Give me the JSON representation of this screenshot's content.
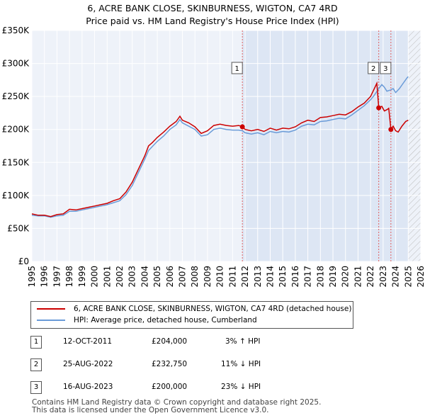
{
  "title_line1": "6, ACRE BANK CLOSE, SKINBURNESS, WIGTON, CA7 4RD",
  "title_line2": "Price paid vs. HM Land Registry's House Price Index (HPI)",
  "chart_data": {
    "type": "line",
    "y_ticks": [
      {
        "value": 0,
        "label": "£0"
      },
      {
        "value": 50000,
        "label": "£50K"
      },
      {
        "value": 100000,
        "label": "£100K"
      },
      {
        "value": 150000,
        "label": "£150K"
      },
      {
        "value": 200000,
        "label": "£200K"
      },
      {
        "value": 250000,
        "label": "£250K"
      },
      {
        "value": 300000,
        "label": "£300K"
      },
      {
        "value": 350000,
        "label": "£350K"
      }
    ],
    "x_ticks": [
      "1995",
      "1996",
      "1997",
      "1998",
      "1999",
      "2000",
      "2001",
      "2002",
      "2003",
      "2004",
      "2005",
      "2006",
      "2007",
      "2008",
      "2009",
      "2010",
      "2011",
      "2012",
      "2013",
      "2014",
      "2015",
      "2016",
      "2017",
      "2018",
      "2019",
      "2020",
      "2021",
      "2022",
      "2023",
      "2024",
      "2025",
      "2026"
    ],
    "xlim": [
      1995,
      2026
    ],
    "ylim": [
      0,
      350000
    ],
    "grid": true,
    "forecast_start": 2025.0,
    "series": [
      {
        "name": "6, ACRE BANK CLOSE, SKINBURNESS, WIGTON, CA7 4RD (detached house)",
        "color": "#cc0000",
        "points": [
          [
            1995.0,
            72000
          ],
          [
            1995.5,
            70000
          ],
          [
            1996.0,
            70000
          ],
          [
            1996.5,
            68000
          ],
          [
            1997.0,
            71000
          ],
          [
            1997.5,
            72000
          ],
          [
            1998.0,
            79000
          ],
          [
            1998.5,
            78000
          ],
          [
            1999.0,
            80000
          ],
          [
            1999.5,
            82000
          ],
          [
            2000.0,
            84000
          ],
          [
            2000.5,
            86000
          ],
          [
            2001.0,
            88000
          ],
          [
            2001.5,
            92000
          ],
          [
            2002.0,
            95000
          ],
          [
            2002.5,
            105000
          ],
          [
            2003.0,
            120000
          ],
          [
            2003.5,
            140000
          ],
          [
            2004.0,
            160000
          ],
          [
            2004.3,
            175000
          ],
          [
            2004.6,
            180000
          ],
          [
            2005.0,
            188000
          ],
          [
            2005.5,
            196000
          ],
          [
            2006.0,
            205000
          ],
          [
            2006.5,
            212000
          ],
          [
            2006.8,
            220000
          ],
          [
            2007.0,
            214000
          ],
          [
            2007.5,
            210000
          ],
          [
            2008.0,
            204000
          ],
          [
            2008.5,
            194000
          ],
          [
            2009.0,
            198000
          ],
          [
            2009.5,
            206000
          ],
          [
            2010.0,
            208000
          ],
          [
            2010.5,
            206000
          ],
          [
            2011.0,
            205000
          ],
          [
            2011.5,
            206000
          ],
          [
            2011.78,
            204000
          ],
          [
            2012.0,
            200000
          ],
          [
            2012.5,
            198000
          ],
          [
            2013.0,
            200000
          ],
          [
            2013.5,
            197000
          ],
          [
            2014.0,
            202000
          ],
          [
            2014.5,
            199000
          ],
          [
            2015.0,
            202000
          ],
          [
            2015.5,
            201000
          ],
          [
            2016.0,
            204000
          ],
          [
            2016.5,
            210000
          ],
          [
            2017.0,
            214000
          ],
          [
            2017.5,
            212000
          ],
          [
            2018.0,
            218000
          ],
          [
            2018.5,
            219000
          ],
          [
            2019.0,
            221000
          ],
          [
            2019.5,
            223000
          ],
          [
            2020.0,
            222000
          ],
          [
            2020.5,
            227000
          ],
          [
            2021.0,
            234000
          ],
          [
            2021.5,
            240000
          ],
          [
            2022.0,
            250000
          ],
          [
            2022.3,
            262000
          ],
          [
            2022.5,
            270000
          ],
          [
            2022.65,
            232750
          ],
          [
            2022.9,
            235000
          ],
          [
            2023.1,
            228000
          ],
          [
            2023.3,
            230000
          ],
          [
            2023.45,
            232000
          ],
          [
            2023.62,
            200000
          ],
          [
            2023.8,
            205000
          ],
          [
            2024.0,
            198000
          ],
          [
            2024.2,
            196000
          ],
          [
            2024.5,
            205000
          ],
          [
            2024.8,
            212000
          ],
          [
            2025.0,
            214000
          ]
        ]
      },
      {
        "name": "HPI: Average price, detached house, Cumberland",
        "color": "#6a9bd8",
        "points": [
          [
            1995.0,
            70000
          ],
          [
            1995.5,
            69000
          ],
          [
            1996.0,
            69000
          ],
          [
            1996.5,
            67000
          ],
          [
            1997.0,
            69000
          ],
          [
            1997.5,
            70000
          ],
          [
            1998.0,
            76000
          ],
          [
            1998.5,
            76000
          ],
          [
            1999.0,
            78000
          ],
          [
            1999.5,
            80000
          ],
          [
            2000.0,
            82000
          ],
          [
            2000.5,
            84000
          ],
          [
            2001.0,
            86000
          ],
          [
            2001.5,
            89000
          ],
          [
            2002.0,
            92000
          ],
          [
            2002.5,
            101000
          ],
          [
            2003.0,
            115000
          ],
          [
            2003.5,
            135000
          ],
          [
            2004.0,
            155000
          ],
          [
            2004.3,
            168000
          ],
          [
            2004.6,
            174000
          ],
          [
            2005.0,
            182000
          ],
          [
            2005.5,
            190000
          ],
          [
            2006.0,
            200000
          ],
          [
            2006.5,
            207000
          ],
          [
            2006.8,
            215000
          ],
          [
            2007.0,
            210000
          ],
          [
            2007.5,
            205000
          ],
          [
            2008.0,
            200000
          ],
          [
            2008.5,
            190000
          ],
          [
            2009.0,
            192000
          ],
          [
            2009.5,
            200000
          ],
          [
            2010.0,
            202000
          ],
          [
            2010.5,
            200000
          ],
          [
            2011.0,
            199000
          ],
          [
            2011.5,
            199000
          ],
          [
            2011.78,
            198000
          ],
          [
            2012.0,
            195000
          ],
          [
            2012.5,
            193000
          ],
          [
            2013.0,
            195000
          ],
          [
            2013.5,
            192000
          ],
          [
            2014.0,
            197000
          ],
          [
            2014.5,
            195000
          ],
          [
            2015.0,
            197000
          ],
          [
            2015.5,
            196000
          ],
          [
            2016.0,
            199000
          ],
          [
            2016.5,
            205000
          ],
          [
            2017.0,
            208000
          ],
          [
            2017.5,
            207000
          ],
          [
            2018.0,
            212000
          ],
          [
            2018.5,
            213000
          ],
          [
            2019.0,
            215000
          ],
          [
            2019.5,
            217000
          ],
          [
            2020.0,
            216000
          ],
          [
            2020.5,
            222000
          ],
          [
            2021.0,
            229000
          ],
          [
            2021.5,
            236000
          ],
          [
            2022.0,
            245000
          ],
          [
            2022.3,
            252000
          ],
          [
            2022.65,
            262000
          ],
          [
            2022.9,
            268000
          ],
          [
            2023.1,
            264000
          ],
          [
            2023.3,
            258000
          ],
          [
            2023.62,
            260000
          ],
          [
            2023.8,
            262000
          ],
          [
            2024.0,
            256000
          ],
          [
            2024.3,
            262000
          ],
          [
            2024.6,
            270000
          ],
          [
            2024.9,
            278000
          ],
          [
            2025.0,
            280000
          ]
        ]
      }
    ],
    "transactions": [
      {
        "label": "1",
        "x": 2011.78,
        "price": 204000
      },
      {
        "label": "2",
        "x": 2022.65,
        "price": 232750
      },
      {
        "label": "3",
        "x": 2023.62,
        "price": 200000
      }
    ]
  },
  "legend": {
    "items": [
      {
        "label": "6, ACRE BANK CLOSE, SKINBURNESS, WIGTON, CA7 4RD (detached house)",
        "color": "#cc0000"
      },
      {
        "label": "HPI: Average price, detached house, Cumberland",
        "color": "#6a9bd8"
      }
    ]
  },
  "table": [
    {
      "num": "1",
      "date": "12-OCT-2011",
      "price": "£204,000",
      "hpi": "3% ↑ HPI"
    },
    {
      "num": "2",
      "date": "25-AUG-2022",
      "price": "£232,750",
      "hpi": "11% ↓ HPI"
    },
    {
      "num": "3",
      "date": "16-AUG-2023",
      "price": "£200,000",
      "hpi": "23% ↓ HPI"
    }
  ],
  "footer": {
    "line1": "Contains HM Land Registry data © Crown copyright and database right 2025.",
    "line2": "This data is licensed under the Open Government Licence v3.0."
  }
}
